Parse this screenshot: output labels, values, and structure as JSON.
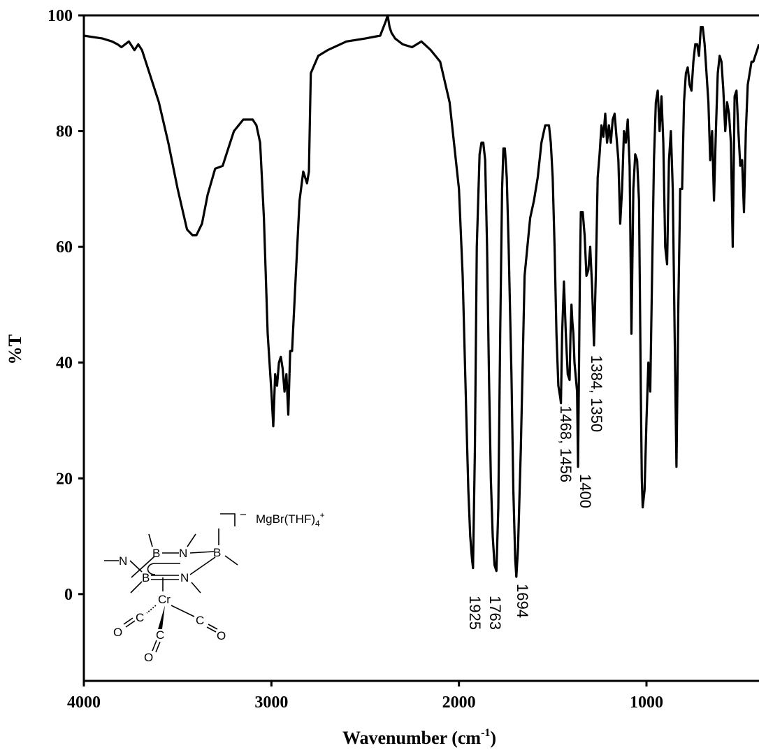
{
  "chart_data": {
    "type": "line",
    "xlabel": "Wavenumber (cm",
    "xlabel_sup": "-1",
    "xlabel_end": ")",
    "ylabel": "%T",
    "xlim": [
      4000,
      400
    ],
    "ylim": [
      -15,
      100
    ],
    "x_ticks": [
      4000,
      3000,
      2000,
      1000
    ],
    "y_ticks": [
      0,
      20,
      40,
      60,
      80,
      100
    ],
    "grid": false,
    "series": [
      {
        "x": [
          4000,
          3900,
          3850,
          3820,
          3800,
          3760,
          3730,
          3710,
          3690,
          3650,
          3600,
          3550,
          3500,
          3450,
          3420,
          3400,
          3370,
          3340,
          3300,
          3260,
          3230,
          3200,
          3150,
          3100,
          3080,
          3060,
          3040,
          3020,
          3000,
          2990,
          2980,
          2970,
          2960,
          2950,
          2940,
          2930,
          2920,
          2910,
          2900,
          2890,
          2870,
          2850,
          2830,
          2810,
          2800,
          2790,
          2750,
          2700,
          2600,
          2500,
          2420,
          2390,
          2380,
          2370,
          2360,
          2340,
          2300,
          2250,
          2200,
          2150,
          2100,
          2050,
          2000,
          1980,
          1960,
          1950,
          1940,
          1930,
          1925,
          1915,
          1905,
          1890,
          1880,
          1870,
          1860,
          1850,
          1840,
          1830,
          1820,
          1810,
          1800,
          1790,
          1780,
          1770,
          1763,
          1755,
          1745,
          1735,
          1720,
          1710,
          1700,
          1694,
          1685,
          1670,
          1650,
          1620,
          1600,
          1580,
          1560,
          1540,
          1520,
          1510,
          1500,
          1490,
          1480,
          1470,
          1460,
          1456,
          1450,
          1440,
          1430,
          1420,
          1410,
          1405,
          1400,
          1395,
          1390,
          1384,
          1370,
          1365,
          1355,
          1350,
          1340,
          1330,
          1320,
          1310,
          1300,
          1290,
          1280,
          1270,
          1260,
          1250,
          1240,
          1230,
          1220,
          1210,
          1200,
          1190,
          1180,
          1170,
          1160,
          1150,
          1140,
          1130,
          1120,
          1110,
          1100,
          1090,
          1080,
          1070,
          1060,
          1050,
          1040,
          1035,
          1030,
          1025,
          1020,
          1010,
          1000,
          990,
          980,
          970,
          960,
          950,
          940,
          930,
          920,
          910,
          900,
          890,
          880,
          870,
          860,
          850,
          840,
          830,
          820,
          810,
          800,
          790,
          780,
          770,
          760,
          750,
          740,
          730,
          720,
          710,
          700,
          690,
          680,
          670,
          660,
          650,
          640,
          630,
          620,
          610,
          600,
          590,
          580,
          570,
          560,
          550,
          540,
          530,
          520,
          510,
          500,
          490,
          480,
          470,
          460,
          450,
          440,
          430,
          420,
          410,
          400
        ],
        "y": [
          96.5,
          96,
          95.5,
          95,
          94.5,
          95.5,
          94,
          95,
          94,
          90,
          85,
          78,
          70,
          63,
          62,
          62,
          64,
          69,
          73.5,
          74,
          77,
          80,
          82,
          82,
          81,
          78,
          65,
          45,
          35,
          29,
          38,
          36,
          40,
          41,
          39,
          35,
          38,
          31,
          42,
          42,
          55,
          68,
          73,
          71,
          73,
          90,
          93,
          94,
          95.5,
          96,
          96.5,
          99,
          100,
          98,
          97,
          96,
          95,
          94.5,
          95.5,
          94,
          92,
          85,
          70,
          55,
          30,
          18,
          10,
          6,
          4.5,
          25,
          60,
          76,
          78,
          78,
          75,
          60,
          38,
          20,
          10,
          5,
          4,
          15,
          45,
          70,
          77,
          77,
          72,
          60,
          38,
          18,
          6,
          3,
          8,
          25,
          55,
          65,
          68,
          72,
          78,
          81,
          81,
          78,
          72,
          60,
          45,
          36,
          34,
          33,
          45,
          54,
          45,
          38,
          37,
          45,
          50,
          47,
          45,
          40,
          35,
          22,
          55,
          66,
          66,
          62,
          55,
          56,
          60,
          53,
          43,
          55,
          72,
          76,
          81,
          79,
          83,
          78,
          81,
          78,
          82,
          83,
          79,
          75,
          64,
          70,
          80,
          78,
          82,
          74,
          45,
          70,
          76,
          75,
          68,
          52,
          35,
          20,
          15,
          18,
          30,
          40,
          35,
          55,
          75,
          85,
          87,
          80,
          86,
          78,
          60,
          57,
          75,
          80,
          70,
          45,
          22,
          50,
          70,
          70,
          85,
          90,
          91,
          88,
          87,
          92,
          95,
          95,
          93,
          98,
          98,
          95,
          90,
          85,
          75,
          80,
          68,
          80,
          90,
          93,
          92,
          87,
          80,
          85,
          83,
          78,
          60,
          86,
          87,
          80,
          74,
          75,
          66,
          80,
          88,
          90,
          92,
          92,
          93,
          94,
          95
        ]
      }
    ],
    "annotations": [
      "1925",
      "1763",
      "1694",
      "1468, 1456",
      "1400",
      "1384, 1350"
    ]
  },
  "molecule": {
    "atoms": [
      "B",
      "N",
      "B",
      "N",
      "B",
      "N",
      "Cr",
      "C",
      "C",
      "C",
      "O",
      "O",
      "O"
    ],
    "counter_ion": "MgBr(THF)",
    "counter_ion_sub": "4",
    "counter_ion_sup": "+",
    "charge": "−"
  }
}
